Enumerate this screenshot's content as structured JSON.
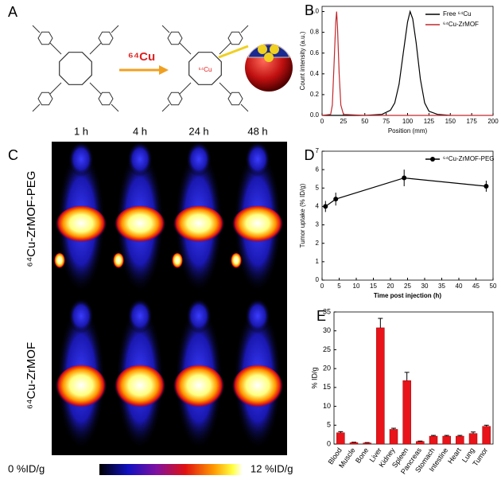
{
  "panels": {
    "a": {
      "label": "A",
      "reagent": "⁶⁴Cu",
      "metal_label": "⁶⁴Cu"
    },
    "c": {
      "label": "C",
      "times": [
        "1 h",
        "4 h",
        "24 h",
        "48 h"
      ],
      "rows": [
        "⁶⁴Cu-ZrMOF-PEG",
        "⁶⁴Cu-ZrMOF"
      ],
      "colorbar": {
        "min_label": "0 %ID/g",
        "max_label": "12 %ID/g"
      }
    }
  },
  "chart_data": [
    {
      "type": "line",
      "label": "B",
      "xlabel": "Position (mm)",
      "ylabel": "Count intensity (a.u.)",
      "xlim": [
        0,
        200
      ],
      "xticks": [
        0,
        25,
        50,
        75,
        100,
        125,
        150,
        175,
        200
      ],
      "ylim": [
        0,
        1.05
      ],
      "yticks": [
        {
          "value": 0,
          "label": "0.0"
        },
        {
          "value": 0.2,
          "label": "0.2"
        },
        {
          "value": 0.4,
          "label": "0.4"
        },
        {
          "value": 0.6,
          "label": "0.6"
        },
        {
          "value": 0.8,
          "label": "0.8"
        },
        {
          "value": 1,
          "label": "1.0"
        }
      ],
      "legend": "top-right",
      "series": [
        {
          "name": "Free ⁶⁴Cu",
          "color": "#000000",
          "x": [
            0,
            25,
            50,
            70,
            80,
            85,
            90,
            95,
            100,
            103,
            106,
            110,
            115,
            120,
            125,
            135,
            150
          ],
          "values": [
            0,
            0,
            0,
            0.01,
            0.05,
            0.12,
            0.3,
            0.6,
            0.9,
            1.0,
            0.93,
            0.7,
            0.35,
            0.12,
            0.04,
            0.01,
            0
          ]
        },
        {
          "name": "⁶⁴Cu-ZrMOF",
          "color": "#c0282d",
          "x": [
            0,
            10,
            12,
            14,
            16,
            17,
            18,
            20,
            22,
            25,
            50,
            100,
            150,
            200
          ],
          "values": [
            0,
            0.01,
            0.1,
            0.5,
            0.9,
            1.0,
            0.85,
            0.4,
            0.1,
            0.01,
            0,
            0,
            0,
            0
          ]
        }
      ]
    },
    {
      "type": "line",
      "label": "D",
      "xlabel": "Time post injection (h)",
      "ylabel": "Tumor uptake (% ID/g)",
      "xlim": [
        0,
        50
      ],
      "xticks": [
        0,
        5,
        10,
        15,
        20,
        25,
        30,
        35,
        40,
        45,
        50
      ],
      "ylim": [
        0,
        7
      ],
      "yticks": [
        0,
        1,
        2,
        3,
        4,
        5,
        6,
        7
      ],
      "legend": "top-right",
      "markers": true,
      "x": [
        1,
        4,
        24,
        48
      ],
      "series": [
        {
          "name": "⁶⁴Cu-ZrMOF-PEG",
          "color": "#000000",
          "values": [
            4.0,
            4.4,
            5.55,
            5.1
          ],
          "errors": [
            0.3,
            0.35,
            0.45,
            0.3
          ]
        }
      ]
    },
    {
      "type": "bar",
      "label": "E",
      "ylabel": "% ID/g",
      "categories": [
        "Blood",
        "Muscle",
        "Bone",
        "Liver",
        "Kidney",
        "Spleen",
        "Pancreas",
        "Stomach",
        "Intestine",
        "Heart",
        "Lung",
        "Tumor"
      ],
      "ylim": [
        0,
        35
      ],
      "yticks": [
        0,
        5,
        10,
        15,
        20,
        25,
        30,
        35
      ],
      "color": "#e8141a",
      "series": [
        {
          "values": [
            3.0,
            0.4,
            0.3,
            30.8,
            3.9,
            16.8,
            0.7,
            2.1,
            2.1,
            2.1,
            2.8,
            4.7
          ],
          "errors": [
            0.3,
            0.1,
            0.1,
            2.5,
            0.3,
            2.2,
            0.1,
            0.2,
            0.2,
            0.2,
            0.4,
            0.3
          ]
        }
      ]
    }
  ]
}
